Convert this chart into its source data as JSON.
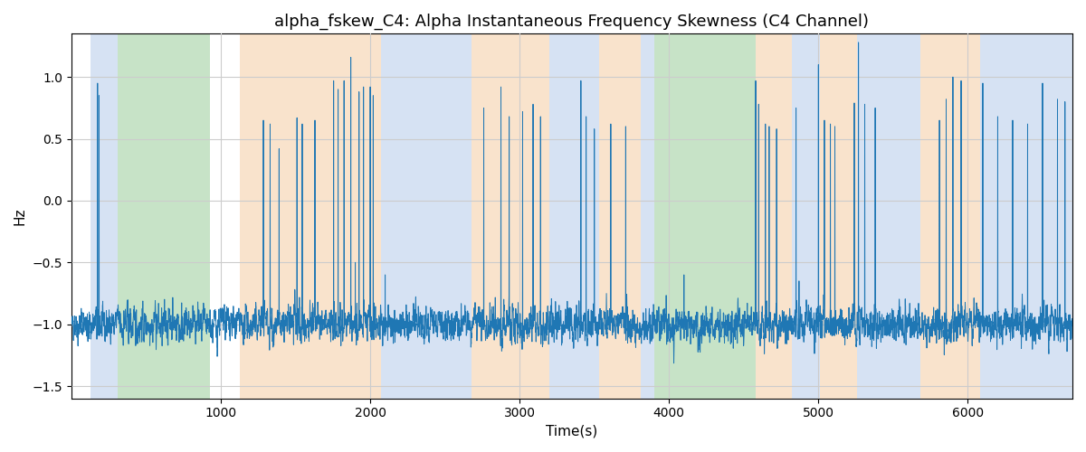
{
  "title": "alpha_fskew_C4: Alpha Instantaneous Frequency Skewness (C4 Channel)",
  "xlabel": "Time(s)",
  "ylabel": "Hz",
  "ylim": [
    -1.6,
    1.35
  ],
  "xlim": [
    0,
    6700
  ],
  "line_color": "#1f77b4",
  "line_width": 0.7,
  "title_fontsize": 13,
  "label_fontsize": 11,
  "seed": 42,
  "n_points": 6700,
  "colored_bands": [
    {
      "xmin": 130,
      "xmax": 310,
      "color": "#aec6e8",
      "alpha": 0.5
    },
    {
      "xmin": 310,
      "xmax": 930,
      "color": "#90c990",
      "alpha": 0.5
    },
    {
      "xmin": 1130,
      "xmax": 2070,
      "color": "#f5c89a",
      "alpha": 0.5
    },
    {
      "xmin": 2070,
      "xmax": 2680,
      "color": "#aec6e8",
      "alpha": 0.5
    },
    {
      "xmin": 2680,
      "xmax": 3200,
      "color": "#f5c89a",
      "alpha": 0.5
    },
    {
      "xmin": 3200,
      "xmax": 3530,
      "color": "#aec6e8",
      "alpha": 0.5
    },
    {
      "xmin": 3530,
      "xmax": 3810,
      "color": "#f5c89a",
      "alpha": 0.5
    },
    {
      "xmin": 3810,
      "xmax": 3900,
      "color": "#aec6e8",
      "alpha": 0.5
    },
    {
      "xmin": 3900,
      "xmax": 4580,
      "color": "#90c990",
      "alpha": 0.5
    },
    {
      "xmin": 4580,
      "xmax": 4820,
      "color": "#f5c89a",
      "alpha": 0.5
    },
    {
      "xmin": 4820,
      "xmax": 5010,
      "color": "#aec6e8",
      "alpha": 0.5
    },
    {
      "xmin": 5010,
      "xmax": 5260,
      "color": "#f5c89a",
      "alpha": 0.5
    },
    {
      "xmin": 5260,
      "xmax": 5680,
      "color": "#aec6e8",
      "alpha": 0.5
    },
    {
      "xmin": 5680,
      "xmax": 6080,
      "color": "#f5c89a",
      "alpha": 0.5
    },
    {
      "xmin": 6080,
      "xmax": 6700,
      "color": "#aec6e8",
      "alpha": 0.5
    }
  ]
}
